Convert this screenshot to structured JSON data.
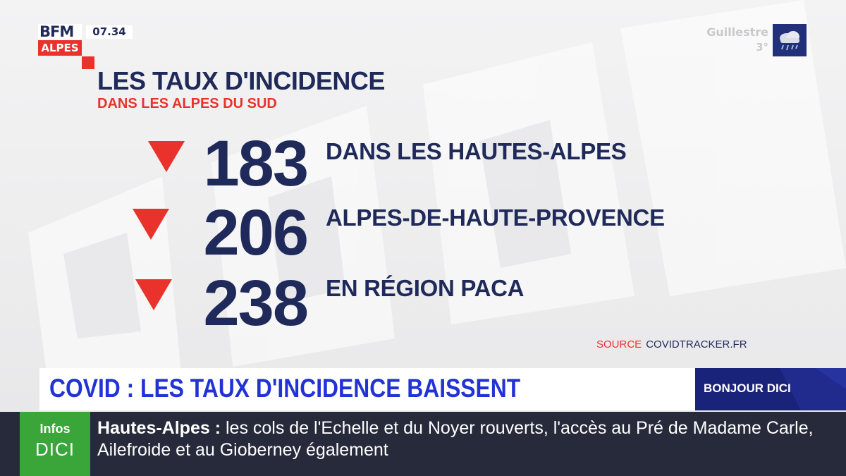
{
  "logo": {
    "brand": "BFM",
    "region": "ALPES"
  },
  "clock": "07.34",
  "weather": {
    "city": "Guillestre",
    "temperature": "3°",
    "icon": "rain-cloud-icon"
  },
  "headline": {
    "title": "LES TAUX D'INCIDENCE",
    "subtitle": "DANS LES ALPES DU SUD"
  },
  "rates": [
    {
      "value": "183",
      "label": "DANS LES HAUTES-ALPES",
      "trend": "down"
    },
    {
      "value": "206",
      "label": "ALPES-DE-HAUTE-PROVENCE",
      "trend": "down"
    },
    {
      "value": "238",
      "label": "EN RÉGION PACA",
      "trend": "down"
    }
  ],
  "source": {
    "label": "SOURCE",
    "value": "COVIDTRACKER.FR"
  },
  "banner": {
    "text": "COVID : LES TAUX D'INCIDENCE BAISSENT",
    "show": "BONJOUR DICI"
  },
  "ticker": {
    "logo_top": "Infos",
    "logo_bottom": "DICI",
    "place": "Hautes-Alpes :",
    "text": "les cols de l'Echelle et du Noyer rouverts, l'accès au Pré de Madame Carle, Ailefroide et au Gioberney également"
  },
  "colors": {
    "navy": "#1f2a5a",
    "red": "#e8322b",
    "banner_blue": "#2233d6",
    "ticker_green": "#3aa63a"
  }
}
